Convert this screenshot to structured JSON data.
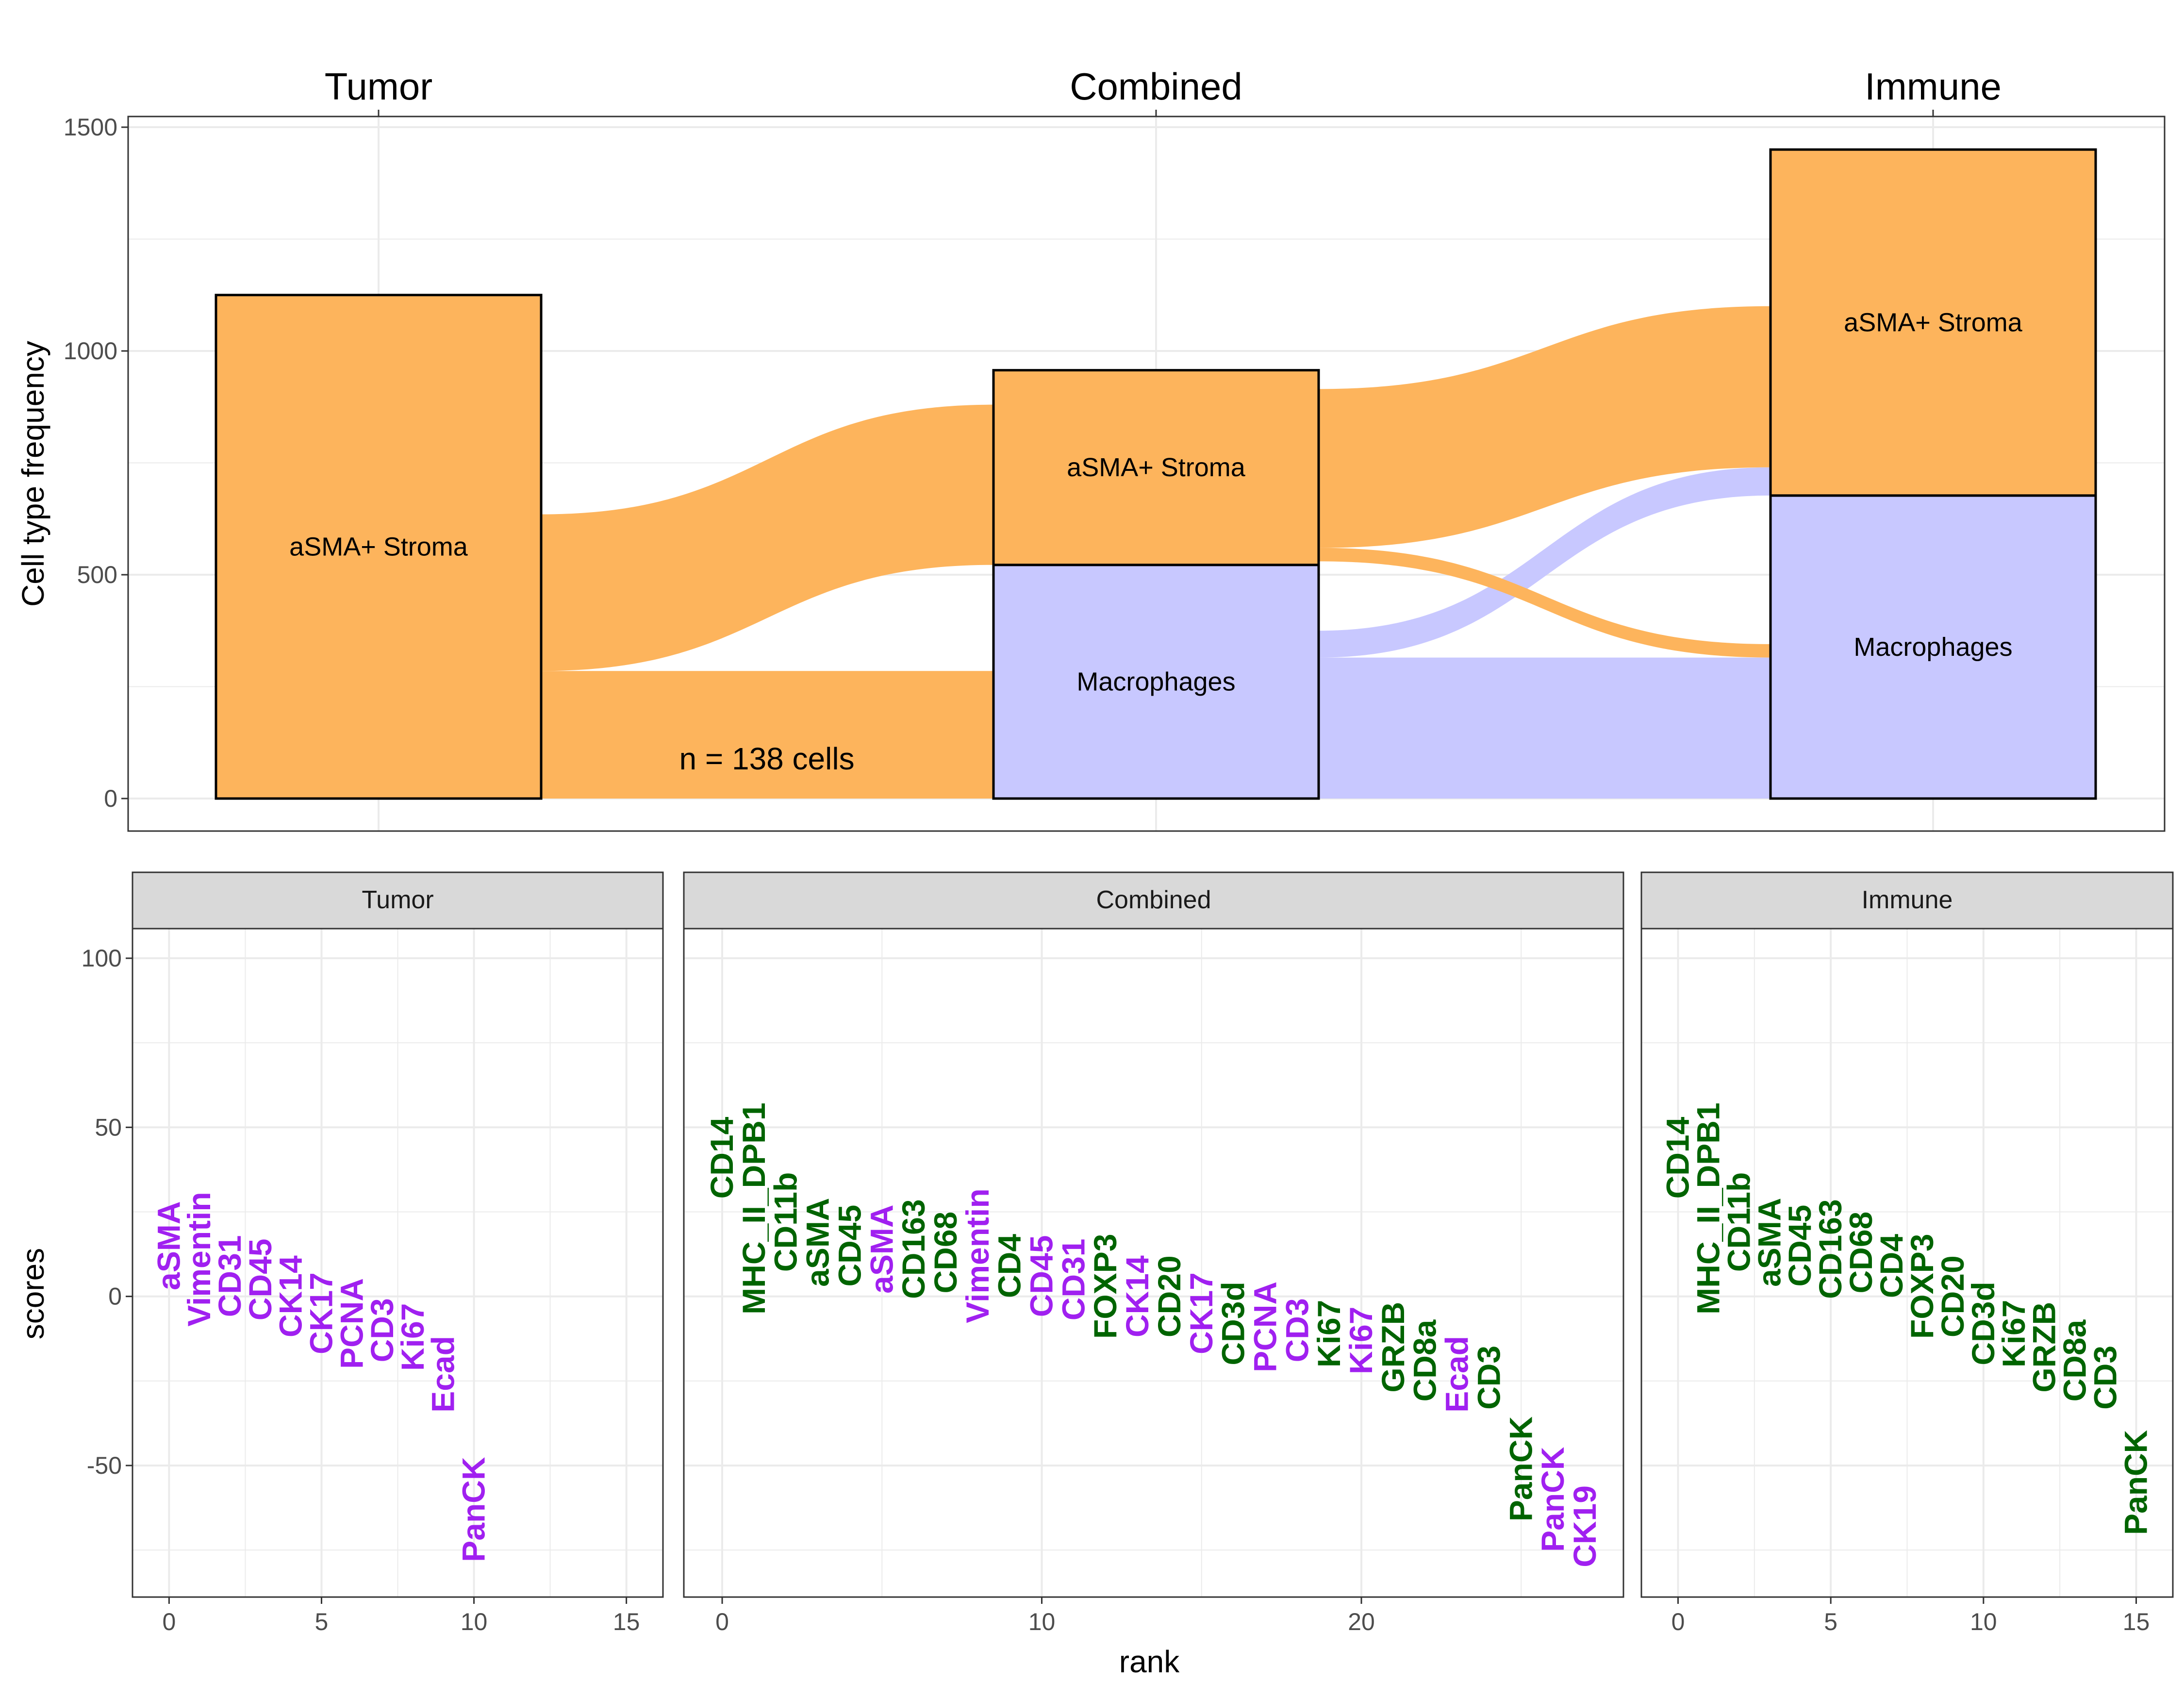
{
  "colors": {
    "tumor_marker": "#A020F0",
    "immune_marker": "#006400",
    "stroma": "#FDB45C",
    "macrophages": "#C8C8FF",
    "strip_bg": "#D9D9D9",
    "grid": "#EBEBEB"
  },
  "chart_data": [
    {
      "type": "alluvial",
      "columns": [
        "Tumor",
        "Combined",
        "Immune"
      ],
      "ylabel": "Cell type frequency",
      "ylim": [
        0,
        1500
      ],
      "yticks": [
        0,
        500,
        1000,
        1500
      ],
      "annotation": "n = 138 cells",
      "strata": [
        {
          "column": "Tumor",
          "label": "aSMA+ Stroma",
          "category": "stroma",
          "from": 0,
          "to": 1125
        },
        {
          "column": "Combined",
          "label": "Macrophages",
          "category": "macrophages",
          "from": 0,
          "to": 522
        },
        {
          "column": "Combined",
          "label": "aSMA+ Stroma",
          "category": "stroma",
          "from": 522,
          "to": 957
        },
        {
          "column": "Immune",
          "label": "Macrophages",
          "category": "macrophages",
          "from": 0,
          "to": 677
        },
        {
          "column": "Immune",
          "label": "aSMA+ Stroma",
          "category": "stroma",
          "from": 677,
          "to": 1450
        }
      ],
      "flows": [
        {
          "category": "stroma",
          "from": "Tumor",
          "to": "Combined",
          "src": [
            0,
            285
          ],
          "dst": [
            0,
            285
          ]
        },
        {
          "category": "stroma",
          "from": "Tumor",
          "to": "Combined",
          "src": [
            285,
            635
          ],
          "dst": [
            522,
            880
          ]
        },
        {
          "category": "macrophages",
          "from": "Combined",
          "to": "Immune",
          "src": [
            0,
            315
          ],
          "dst": [
            0,
            315
          ]
        },
        {
          "category": "macrophages",
          "from": "Combined",
          "to": "Immune",
          "src": [
            315,
            375
          ],
          "dst": [
            677,
            740
          ]
        },
        {
          "category": "stroma",
          "from": "Combined",
          "to": "Immune",
          "src": [
            530,
            560
          ],
          "dst": [
            315,
            345
          ]
        },
        {
          "category": "stroma",
          "from": "Combined",
          "to": "Immune",
          "src": [
            560,
            915
          ],
          "dst": [
            740,
            1100
          ]
        }
      ]
    },
    {
      "type": "scatter-text",
      "xlabel": "rank",
      "ylabel": "scores",
      "ylim": [
        -80,
        110
      ],
      "yticks": [
        -50,
        0,
        50,
        100
      ],
      "panels": [
        {
          "name": "Tumor",
          "xlim": [
            -1.2,
            16.2
          ],
          "xticks": [
            0,
            5,
            10,
            15
          ],
          "points": [
            {
              "rank": 0,
              "score": 15,
              "label": "aSMA",
              "group": "tumor"
            },
            {
              "rank": 1,
              "score": 11,
              "label": "Vimentin",
              "group": "tumor"
            },
            {
              "rank": 2,
              "score": 6,
              "label": "CD31",
              "group": "tumor"
            },
            {
              "rank": 3,
              "score": 5,
              "label": "CD45",
              "group": "tumor"
            },
            {
              "rank": 4,
              "score": 0,
              "label": "CK14",
              "group": "tumor"
            },
            {
              "rank": 5,
              "score": -5,
              "label": "CK17",
              "group": "tumor"
            },
            {
              "rank": 6,
              "score": -8,
              "label": "PCNA",
              "group": "tumor"
            },
            {
              "rank": 7,
              "score": -10,
              "label": "CD3",
              "group": "tumor"
            },
            {
              "rank": 8,
              "score": -12,
              "label": "Ki67",
              "group": "tumor"
            },
            {
              "rank": 9,
              "score": -23,
              "label": "Ecad",
              "group": "tumor"
            },
            {
              "rank": 10,
              "score": -63,
              "label": "PanCK",
              "group": "tumor"
            }
          ]
        },
        {
          "name": "Combined",
          "xlim": [
            -1.2,
            28.2
          ],
          "xticks": [
            0,
            10,
            20
          ],
          "points": [
            {
              "rank": 0,
              "score": 41,
              "label": "CD14",
              "group": "immune"
            },
            {
              "rank": 1,
              "score": 26,
              "label": "MHC_II_DPB1",
              "group": "immune"
            },
            {
              "rank": 2,
              "score": 22,
              "label": "CD11b",
              "group": "immune"
            },
            {
              "rank": 3,
              "score": 16,
              "label": "aSMA",
              "group": "immune"
            },
            {
              "rank": 4,
              "score": 15,
              "label": "CD45",
              "group": "immune"
            },
            {
              "rank": 5,
              "score": 14,
              "label": "aSMA",
              "group": "tumor"
            },
            {
              "rank": 6,
              "score": 14,
              "label": "CD163",
              "group": "immune"
            },
            {
              "rank": 7,
              "score": 13,
              "label": "CD68",
              "group": "immune"
            },
            {
              "rank": 8,
              "score": 12,
              "label": "Vimentin",
              "group": "tumor"
            },
            {
              "rank": 9,
              "score": 9,
              "label": "CD4",
              "group": "immune"
            },
            {
              "rank": 10,
              "score": 6,
              "label": "CD45",
              "group": "tumor"
            },
            {
              "rank": 11,
              "score": 5,
              "label": "CD31",
              "group": "tumor"
            },
            {
              "rank": 12,
              "score": 3,
              "label": "FOXP3",
              "group": "immune"
            },
            {
              "rank": 13,
              "score": 0,
              "label": "CK14",
              "group": "tumor"
            },
            {
              "rank": 14,
              "score": 0,
              "label": "CD20",
              "group": "immune"
            },
            {
              "rank": 15,
              "score": -5,
              "label": "CK17",
              "group": "tumor"
            },
            {
              "rank": 16,
              "score": -8,
              "label": "CD3d",
              "group": "immune"
            },
            {
              "rank": 17,
              "score": -9,
              "label": "PCNA",
              "group": "tumor"
            },
            {
              "rank": 18,
              "score": -10,
              "label": "CD3",
              "group": "tumor"
            },
            {
              "rank": 19,
              "score": -11,
              "label": "Ki67",
              "group": "immune"
            },
            {
              "rank": 20,
              "score": -13,
              "label": "Ki67",
              "group": "tumor"
            },
            {
              "rank": 21,
              "score": -15,
              "label": "GRZB",
              "group": "immune"
            },
            {
              "rank": 22,
              "score": -19,
              "label": "CD8a",
              "group": "immune"
            },
            {
              "rank": 23,
              "score": -23,
              "label": "Ecad",
              "group": "tumor"
            },
            {
              "rank": 24,
              "score": -24,
              "label": "CD3",
              "group": "immune"
            },
            {
              "rank": 25,
              "score": -51,
              "label": "PanCK",
              "group": "immune"
            },
            {
              "rank": 26,
              "score": -60,
              "label": "PanCK",
              "group": "tumor"
            },
            {
              "rank": 27,
              "score": -68,
              "label": "CK19",
              "group": "tumor"
            }
          ]
        },
        {
          "name": "Immune",
          "xlim": [
            -1.2,
            16.2
          ],
          "xticks": [
            0,
            5,
            10,
            15
          ],
          "points": [
            {
              "rank": 0,
              "score": 41,
              "label": "CD14",
              "group": "immune"
            },
            {
              "rank": 1,
              "score": 26,
              "label": "MHC_II_DPB1",
              "group": "immune"
            },
            {
              "rank": 2,
              "score": 22,
              "label": "CD11b",
              "group": "immune"
            },
            {
              "rank": 3,
              "score": 16,
              "label": "aSMA",
              "group": "immune"
            },
            {
              "rank": 4,
              "score": 15,
              "label": "CD45",
              "group": "immune"
            },
            {
              "rank": 5,
              "score": 14,
              "label": "CD163",
              "group": "immune"
            },
            {
              "rank": 6,
              "score": 13,
              "label": "CD68",
              "group": "immune"
            },
            {
              "rank": 7,
              "score": 9,
              "label": "CD4",
              "group": "immune"
            },
            {
              "rank": 8,
              "score": 3,
              "label": "FOXP3",
              "group": "immune"
            },
            {
              "rank": 9,
              "score": 0,
              "label": "CD20",
              "group": "immune"
            },
            {
              "rank": 10,
              "score": -8,
              "label": "CD3d",
              "group": "immune"
            },
            {
              "rank": 11,
              "score": -11,
              "label": "Ki67",
              "group": "immune"
            },
            {
              "rank": 12,
              "score": -15,
              "label": "GRZB",
              "group": "immune"
            },
            {
              "rank": 13,
              "score": -19,
              "label": "CD8a",
              "group": "immune"
            },
            {
              "rank": 14,
              "score": -24,
              "label": "CD3",
              "group": "immune"
            },
            {
              "rank": 15,
              "score": -55,
              "label": "PanCK",
              "group": "immune"
            }
          ]
        }
      ]
    }
  ]
}
